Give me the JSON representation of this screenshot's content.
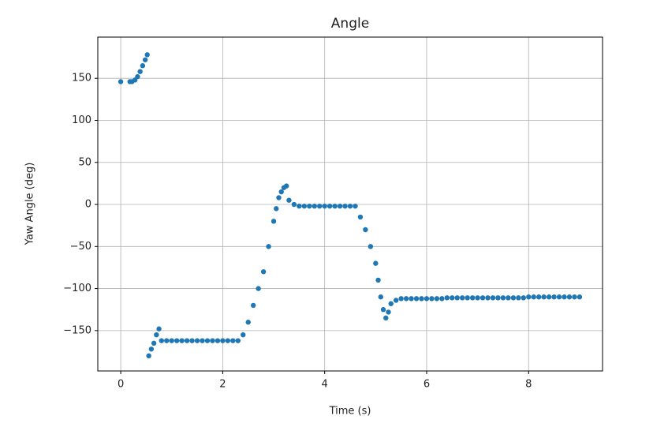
{
  "chart_data": {
    "type": "scatter",
    "title": "Angle",
    "x_label": "Time (s)",
    "y_label": "Yaw Angle (deg)",
    "color": "#1f77b4",
    "grid": true,
    "xlim": [
      -0.45,
      9.45
    ],
    "ylim": [
      -198,
      199
    ],
    "xticks": [
      0,
      2,
      4,
      6,
      8
    ],
    "yticks": [
      {
        "value": -150,
        "label": "−150"
      },
      {
        "value": -100,
        "label": "−100"
      },
      {
        "value": -50,
        "label": "−50"
      },
      0,
      50,
      100,
      150
    ],
    "x": [
      0,
      0.18,
      0.22,
      0.28,
      0.33,
      0.38,
      0.43,
      0.48,
      0.52,
      0.55,
      0.6,
      0.65,
      0.7,
      0.75,
      0.8,
      0.9,
      1.0,
      1.1,
      1.2,
      1.3,
      1.4,
      1.5,
      1.6,
      1.7,
      1.8,
      1.9,
      2.0,
      2.1,
      2.2,
      2.3,
      2.4,
      2.5,
      2.6,
      2.7,
      2.8,
      2.9,
      3.0,
      3.05,
      3.1,
      3.15,
      3.2,
      3.25,
      3.3,
      3.4,
      3.5,
      3.6,
      3.7,
      3.8,
      3.9,
      4.0,
      4.1,
      4.2,
      4.3,
      4.4,
      4.5,
      4.6,
      4.7,
      4.8,
      4.9,
      5.0,
      5.05,
      5.1,
      5.15,
      5.2,
      5.25,
      5.3,
      5.4,
      5.5,
      5.6,
      5.7,
      5.8,
      5.9,
      6.0,
      6.1,
      6.2,
      6.3,
      6.4,
      6.5,
      6.6,
      6.7,
      6.8,
      6.9,
      7.0,
      7.1,
      7.2,
      7.3,
      7.4,
      7.5,
      7.6,
      7.7,
      7.8,
      7.9,
      8.0,
      8.1,
      8.2,
      8.3,
      8.4,
      8.5,
      8.6,
      8.7,
      8.8,
      8.9,
      9.0
    ],
    "values": [
      146,
      146,
      146,
      148,
      152,
      158,
      165,
      172,
      178,
      -180,
      -172,
      -165,
      -155,
      -148,
      -162,
      -162,
      -162,
      -162,
      -162,
      -162,
      -162,
      -162,
      -162,
      -162,
      -162,
      -162,
      -162,
      -162,
      -162,
      -162,
      -155,
      -140,
      -120,
      -100,
      -80,
      -50,
      -20,
      -5,
      8,
      15,
      20,
      22,
      5,
      0,
      -2,
      -2,
      -2,
      -2,
      -2,
      -2,
      -2,
      -2,
      -2,
      -2,
      -2,
      -2,
      -15,
      -30,
      -50,
      -70,
      -90,
      -110,
      -125,
      -135,
      -128,
      -118,
      -114,
      -112,
      -112,
      -112,
      -112,
      -112,
      -112,
      -112,
      -112,
      -112,
      -111,
      -111,
      -111,
      -111,
      -111,
      -111,
      -111,
      -111,
      -111,
      -111,
      -111,
      -111,
      -111,
      -111,
      -111,
      -111,
      -110,
      -110,
      -110,
      -110,
      -110,
      -110,
      -110,
      -110,
      -110,
      -110,
      -110
    ]
  }
}
